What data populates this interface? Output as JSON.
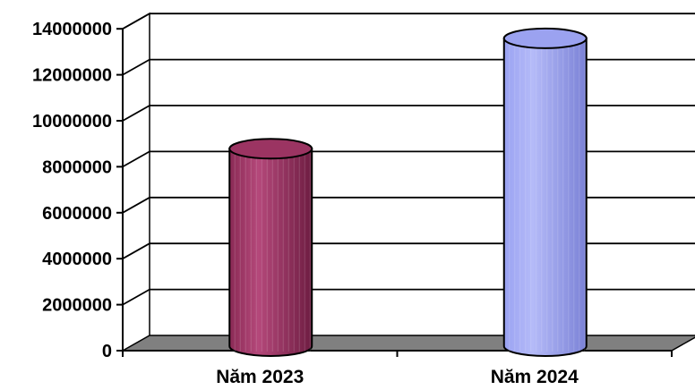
{
  "chart_data": {
    "type": "bar",
    "style": "3d-cylinder",
    "categories": [
      "Năm 2023",
      "Năm 2024"
    ],
    "values": [
      8900000,
      13700000
    ],
    "colors": [
      "#9b3462",
      "#9ba2f0"
    ],
    "ylim": [
      0,
      14000000
    ],
    "yticks": [
      0,
      2000000,
      4000000,
      6000000,
      8000000,
      10000000,
      12000000,
      14000000
    ],
    "ytick_labels": [
      "0",
      "2000000",
      "4000000",
      "6000000",
      "8000000",
      "10000000",
      "12000000",
      "14000000"
    ],
    "gridlines": true,
    "floor_color": "#808080",
    "legend": "none"
  }
}
